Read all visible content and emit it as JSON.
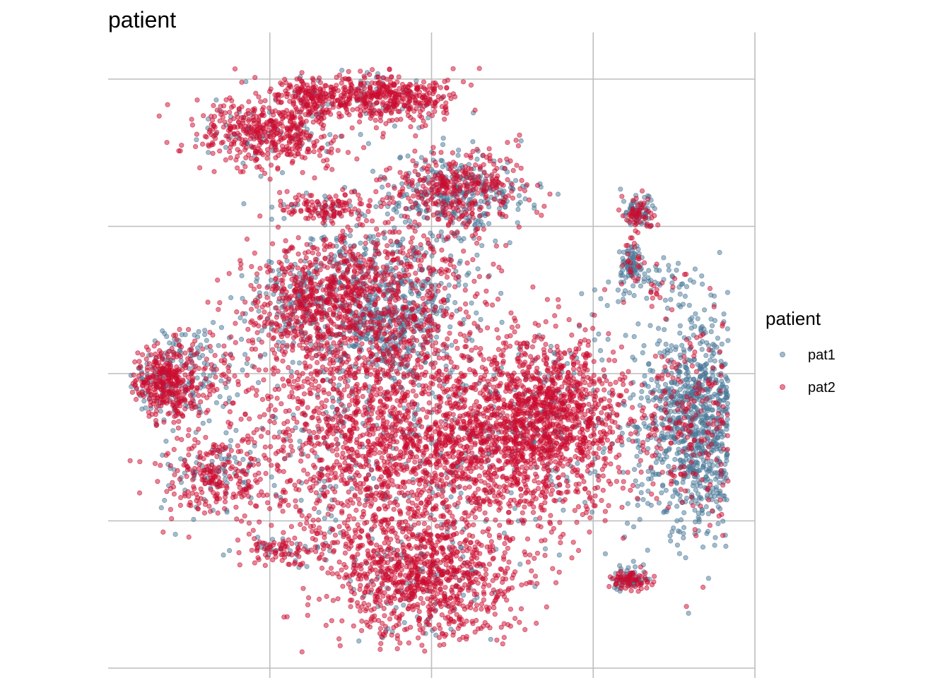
{
  "chart_data": {
    "type": "scatter",
    "title": "patient",
    "xlabel": "",
    "ylabel": "",
    "xlim": [
      -20,
      20
    ],
    "ylim": [
      -20,
      20
    ],
    "x_gridlines": [
      -10,
      0,
      10,
      20
    ],
    "y_gridlines": [
      -20,
      -10,
      0,
      10,
      20
    ],
    "grid": true,
    "axis_tick_labels": false,
    "legend": {
      "title": "patient",
      "placement": "right"
    },
    "series": [
      {
        "name": "pat1",
        "color": "#4a7898"
      },
      {
        "name": "pat2",
        "color": "#cc0c2f"
      }
    ],
    "point_alpha": 0.5,
    "clusters": [
      {
        "label": "top-left arc",
        "cx": -10.0,
        "cy": 16.5,
        "sx": 2.2,
        "sy": 1.2,
        "n": 520,
        "pat2_frac": 0.88
      },
      {
        "label": "top-left arc tail",
        "cx": -7.5,
        "cy": 19.0,
        "sx": 0.8,
        "sy": 0.5,
        "n": 120,
        "pat2_frac": 0.9
      },
      {
        "label": "top center arc",
        "cx": -3.0,
        "cy": 18.8,
        "sx": 2.4,
        "sy": 0.8,
        "n": 460,
        "pat2_frac": 0.9
      },
      {
        "label": "upper middle",
        "cx": 1.5,
        "cy": 12.3,
        "sx": 2.2,
        "sy": 1.4,
        "n": 650,
        "pat2_frac": 0.55
      },
      {
        "label": "small strip",
        "cx": -6.8,
        "cy": 11.3,
        "sx": 1.5,
        "sy": 0.5,
        "n": 140,
        "pat2_frac": 0.8
      },
      {
        "label": "middle left upper",
        "cx": -7.5,
        "cy": 4.5,
        "sx": 2.0,
        "sy": 2.0,
        "n": 650,
        "pat2_frac": 0.75
      },
      {
        "label": "middle upper",
        "cx": -3.0,
        "cy": 6.5,
        "sx": 2.8,
        "sy": 2.0,
        "n": 650,
        "pat2_frac": 0.55
      },
      {
        "label": "middle mixed",
        "cx": -2.5,
        "cy": 3.0,
        "sx": 1.8,
        "sy": 1.6,
        "n": 420,
        "pat2_frac": 0.3
      },
      {
        "label": "far left",
        "cx": -16.5,
        "cy": -0.4,
        "sx": 1.2,
        "sy": 1.4,
        "n": 420,
        "pat2_frac": 0.75
      },
      {
        "label": "far left sparse",
        "cx": -14.0,
        "cy": 0.0,
        "sx": 1.8,
        "sy": 1.5,
        "n": 160,
        "pat2_frac": 0.5
      },
      {
        "label": "lower left",
        "cx": -13.5,
        "cy": -7.2,
        "sx": 1.5,
        "sy": 1.4,
        "n": 280,
        "pat2_frac": 0.75
      },
      {
        "label": "central large",
        "cx": -3.5,
        "cy": -4.5,
        "sx": 4.0,
        "sy": 4.0,
        "n": 1600,
        "pat2_frac": 0.85
      },
      {
        "label": "right central",
        "cx": 5.0,
        "cy": -4.0,
        "sx": 3.5,
        "sy": 3.2,
        "n": 1500,
        "pat2_frac": 0.9
      },
      {
        "label": "right upper blob",
        "cx": 7.8,
        "cy": -2.2,
        "sx": 2.0,
        "sy": 2.3,
        "n": 480,
        "pat2_frac": 0.9
      },
      {
        "label": "bottom blob",
        "cx": -0.6,
        "cy": -13.8,
        "sx": 3.0,
        "sy": 2.3,
        "n": 1000,
        "pat2_frac": 0.92
      },
      {
        "label": "bottom left tail",
        "cx": -9.5,
        "cy": -12.0,
        "sx": 1.3,
        "sy": 0.5,
        "n": 90,
        "pat2_frac": 0.7
      },
      {
        "label": "right cluster",
        "cx": 16.5,
        "cy": -3.5,
        "sx": 1.9,
        "sy": 3.6,
        "n": 1250,
        "pat2_frac": 0.2
      },
      {
        "label": "right small top",
        "cx": 12.8,
        "cy": 11.0,
        "sx": 0.5,
        "sy": 0.6,
        "n": 120,
        "pat2_frac": 0.45
      },
      {
        "label": "right small mid",
        "cx": 12.4,
        "cy": 7.5,
        "sx": 0.4,
        "sy": 0.8,
        "n": 90,
        "pat2_frac": 0.3
      },
      {
        "label": "right scattered",
        "cx": 13.8,
        "cy": 6.0,
        "sx": 1.6,
        "sy": 0.8,
        "n": 70,
        "pat2_frac": 0.25
      },
      {
        "label": "bottom right small",
        "cx": 12.2,
        "cy": -14.0,
        "sx": 0.6,
        "sy": 0.4,
        "n": 130,
        "pat2_frac": 0.6
      }
    ]
  }
}
